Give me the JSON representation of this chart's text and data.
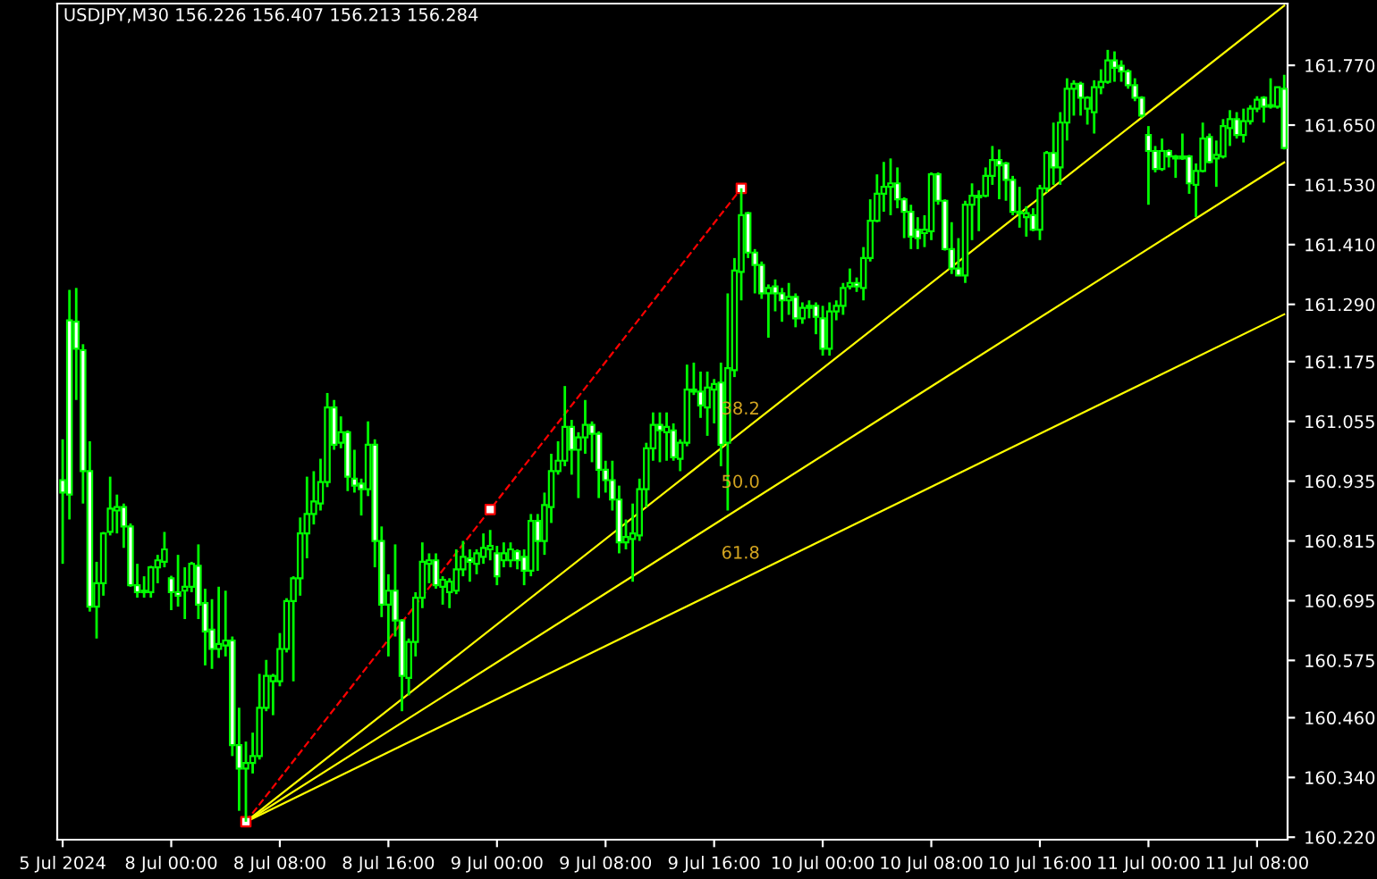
{
  "chart_data": {
    "type": "candlestick",
    "title": "USDJPY,M30 156.226 156.407 156.213 156.284",
    "color": "#00ff00",
    "categories": [
      "5 Jul 2024",
      null,
      null,
      null,
      null,
      null,
      null,
      null,
      null,
      null,
      null,
      null,
      null,
      null,
      null,
      null,
      "8 Jul 00:00",
      null,
      null,
      null,
      null,
      null,
      null,
      null,
      null,
      null,
      null,
      null,
      null,
      null,
      null,
      null,
      "8 Jul 08:00",
      null,
      null,
      null,
      null,
      null,
      null,
      null,
      null,
      null,
      null,
      null,
      null,
      null,
      null,
      null,
      "8 Jul 16:00",
      null,
      null,
      null,
      null,
      null,
      null,
      null,
      null,
      null,
      null,
      null,
      null,
      null,
      null,
      null,
      "9 Jul 00:00",
      null,
      null,
      null,
      null,
      null,
      null,
      null,
      null,
      null,
      null,
      null,
      null,
      null,
      null,
      null,
      "9 Jul 08:00",
      null,
      null,
      null,
      null,
      null,
      null,
      null,
      null,
      null,
      null,
      null,
      null,
      null,
      null,
      null,
      "9 Jul 16:00",
      null,
      null,
      null,
      null,
      null,
      null,
      null,
      null,
      null,
      null,
      null,
      null,
      null,
      null,
      null,
      "10 Jul 00:00",
      null,
      null,
      null,
      null,
      null,
      null,
      null,
      null,
      null,
      null,
      null,
      null,
      null,
      null,
      null,
      "10 Jul 08:00",
      null,
      null,
      null,
      null,
      null,
      null,
      null,
      null,
      null,
      null,
      null,
      null,
      null,
      null,
      null,
      "10 Jul 16:00",
      null,
      null,
      null,
      null,
      null,
      null,
      null,
      null,
      null,
      null,
      null,
      null,
      null,
      null,
      null,
      "11 Jul 00:00",
      null,
      null,
      null,
      null,
      null,
      null,
      null,
      null,
      null,
      null,
      null,
      null,
      null,
      null,
      null,
      "11 Jul 08:00",
      null,
      null,
      null,
      null
    ],
    "ohlc": [
      [
        160.937,
        161.019,
        160.769,
        160.912
      ],
      [
        161.258,
        161.319,
        160.858,
        160.908
      ],
      [
        161.255,
        161.323,
        161.098,
        161.201
      ],
      [
        161.198,
        161.21,
        160.89,
        160.955
      ],
      [
        160.955,
        161.015,
        160.673,
        160.683
      ],
      [
        160.683,
        160.773,
        160.619,
        160.73
      ],
      [
        160.73,
        160.833,
        160.705,
        160.83
      ],
      [
        160.833,
        160.944,
        160.826,
        160.88
      ],
      [
        160.876,
        160.908,
        160.83,
        160.883
      ],
      [
        160.883,
        160.89,
        160.801,
        160.844
      ],
      [
        160.844,
        160.85,
        160.723,
        160.726
      ],
      [
        160.726,
        160.769,
        160.701,
        160.712
      ],
      [
        160.715,
        160.744,
        160.701,
        160.712
      ],
      [
        160.712,
        160.765,
        160.701,
        160.762
      ],
      [
        160.762,
        160.787,
        160.73,
        160.776
      ],
      [
        160.773,
        160.833,
        160.762,
        160.798
      ],
      [
        160.74,
        160.745,
        160.676,
        160.712
      ],
      [
        160.712,
        160.787,
        160.683,
        160.705
      ],
      [
        160.715,
        160.762,
        160.658,
        160.723
      ],
      [
        160.723,
        160.773,
        160.712,
        160.769
      ],
      [
        160.765,
        160.808,
        160.658,
        160.687
      ],
      [
        160.69,
        160.719,
        160.565,
        160.633
      ],
      [
        160.637,
        160.698,
        160.558,
        160.598
      ],
      [
        160.598,
        160.723,
        160.58,
        160.608
      ],
      [
        160.605,
        160.715,
        160.583,
        160.615
      ],
      [
        160.615,
        160.623,
        160.383,
        160.405
      ],
      [
        160.405,
        160.48,
        160.273,
        160.358
      ],
      [
        160.358,
        160.412,
        160.251,
        160.369
      ],
      [
        160.369,
        160.43,
        160.348,
        160.383
      ],
      [
        160.383,
        160.548,
        160.376,
        160.48
      ],
      [
        160.48,
        160.576,
        160.473,
        160.544
      ],
      [
        160.533,
        160.548,
        160.465,
        160.544
      ],
      [
        160.533,
        160.63,
        160.523,
        160.598
      ],
      [
        160.598,
        160.7,
        160.591,
        160.694
      ],
      [
        160.694,
        160.744,
        160.533,
        160.74
      ],
      [
        160.74,
        160.862,
        160.705,
        160.83
      ],
      [
        160.83,
        160.944,
        160.78,
        160.869
      ],
      [
        160.869,
        160.955,
        160.848,
        160.894
      ],
      [
        160.89,
        160.98,
        160.876,
        160.933
      ],
      [
        160.933,
        161.112,
        160.923,
        161.083
      ],
      [
        161.083,
        161.098,
        160.998,
        161.008
      ],
      [
        161.012,
        161.065,
        161.001,
        161.033
      ],
      [
        161.033,
        161.037,
        160.915,
        160.944
      ],
      [
        160.94,
        160.998,
        160.912,
        160.926
      ],
      [
        160.93,
        160.94,
        160.866,
        160.919
      ],
      [
        160.919,
        161.055,
        160.905,
        161.008
      ],
      [
        161.008,
        161.019,
        160.762,
        160.815
      ],
      [
        160.815,
        160.844,
        160.662,
        160.687
      ],
      [
        160.687,
        160.748,
        160.583,
        160.715
      ],
      [
        160.715,
        160.808,
        160.623,
        160.655
      ],
      [
        160.655,
        160.658,
        160.473,
        160.544
      ],
      [
        160.54,
        160.619,
        160.505,
        160.612
      ],
      [
        160.612,
        160.712,
        160.583,
        160.701
      ],
      [
        160.701,
        160.812,
        160.68,
        160.773
      ],
      [
        160.769,
        160.79,
        160.73,
        160.776
      ],
      [
        160.776,
        160.79,
        160.719,
        160.726
      ],
      [
        160.723,
        160.744,
        160.687,
        160.737
      ],
      [
        160.712,
        160.74,
        160.68,
        160.733
      ],
      [
        160.715,
        160.798,
        160.708,
        160.758
      ],
      [
        160.758,
        160.815,
        160.744,
        160.783
      ],
      [
        160.78,
        160.798,
        160.733,
        160.773
      ],
      [
        160.769,
        160.798,
        160.748,
        160.79
      ],
      [
        160.783,
        160.83,
        160.769,
        160.801
      ],
      [
        160.798,
        160.837,
        160.776,
        160.805
      ],
      [
        160.79,
        160.805,
        160.726,
        160.744
      ],
      [
        160.776,
        160.812,
        160.762,
        160.79
      ],
      [
        160.776,
        160.812,
        160.762,
        160.798
      ],
      [
        160.794,
        160.798,
        160.758,
        160.776
      ],
      [
        160.783,
        160.798,
        160.726,
        160.755
      ],
      [
        160.755,
        160.869,
        160.744,
        160.855
      ],
      [
        160.855,
        160.869,
        160.755,
        160.815
      ],
      [
        160.815,
        160.912,
        160.787,
        160.887
      ],
      [
        160.883,
        160.99,
        160.851,
        160.955
      ],
      [
        160.955,
        161.015,
        160.948,
        160.976
      ],
      [
        160.976,
        161.126,
        160.965,
        161.044
      ],
      [
        161.044,
        161.058,
        160.948,
        160.998
      ],
      [
        160.998,
        161.033,
        160.901,
        161.023
      ],
      [
        161.023,
        161.098,
        160.99,
        161.048
      ],
      [
        161.048,
        161.055,
        160.973,
        161.03
      ],
      [
        161.03,
        161.035,
        160.901,
        160.958
      ],
      [
        160.958,
        160.976,
        160.912,
        160.937
      ],
      [
        160.937,
        160.976,
        160.876,
        160.898
      ],
      [
        160.898,
        160.926,
        160.79,
        160.812
      ],
      [
        160.812,
        160.858,
        160.798,
        160.823
      ],
      [
        160.819,
        160.89,
        160.733,
        160.83
      ],
      [
        160.826,
        160.94,
        160.815,
        160.919
      ],
      [
        160.919,
        161.012,
        160.883,
        161.001
      ],
      [
        161.001,
        161.073,
        160.976,
        161.048
      ],
      [
        161.048,
        161.073,
        160.973,
        161.037
      ],
      [
        161.033,
        161.073,
        160.976,
        161.044
      ],
      [
        161.037,
        161.051,
        160.976,
        160.983
      ],
      [
        160.98,
        161.019,
        160.955,
        161.012
      ],
      [
        161.012,
        161.169,
        161.005,
        161.119
      ],
      [
        161.119,
        161.173,
        161.108,
        161.115
      ],
      [
        161.115,
        161.155,
        161.062,
        161.087
      ],
      [
        161.083,
        161.155,
        161.026,
        161.123
      ],
      [
        161.119,
        161.14,
        161.051,
        161.13
      ],
      [
        161.133,
        161.173,
        160.965,
        161.008
      ],
      [
        161.012,
        161.312,
        160.876,
        161.162
      ],
      [
        161.158,
        161.383,
        161.144,
        161.358
      ],
      [
        161.355,
        161.523,
        161.298,
        161.469
      ],
      [
        161.473,
        161.476,
        161.383,
        161.394
      ],
      [
        161.394,
        161.401,
        161.312,
        161.369
      ],
      [
        161.369,
        161.376,
        161.301,
        161.312
      ],
      [
        161.312,
        161.33,
        161.223,
        161.323
      ],
      [
        161.326,
        161.34,
        161.276,
        161.312
      ],
      [
        161.312,
        161.323,
        161.255,
        161.298
      ],
      [
        161.298,
        161.333,
        161.269,
        161.305
      ],
      [
        161.305,
        161.312,
        161.244,
        161.262
      ],
      [
        161.262,
        161.294,
        161.251,
        161.283
      ],
      [
        161.283,
        161.298,
        161.262,
        161.287
      ],
      [
        161.287,
        161.294,
        161.23,
        161.265
      ],
      [
        161.262,
        161.287,
        161.187,
        161.201
      ],
      [
        161.201,
        161.294,
        161.187,
        161.276
      ],
      [
        161.276,
        161.298,
        161.258,
        161.287
      ],
      [
        161.287,
        161.333,
        161.269,
        161.323
      ],
      [
        161.326,
        161.362,
        161.32,
        161.333
      ],
      [
        161.333,
        161.344,
        161.315,
        161.326
      ],
      [
        161.323,
        161.405,
        161.298,
        161.383
      ],
      [
        161.383,
        161.501,
        161.376,
        161.458
      ],
      [
        161.458,
        161.551,
        161.455,
        161.512
      ],
      [
        161.512,
        161.576,
        161.476,
        161.526
      ],
      [
        161.526,
        161.583,
        161.469,
        161.533
      ],
      [
        161.533,
        161.565,
        161.483,
        161.501
      ],
      [
        161.501,
        161.505,
        161.423,
        161.476
      ],
      [
        161.476,
        161.49,
        161.401,
        161.426
      ],
      [
        161.44,
        161.465,
        161.401,
        161.423
      ],
      [
        161.433,
        161.469,
        161.405,
        161.44
      ],
      [
        161.437,
        161.555,
        161.419,
        161.551
      ],
      [
        161.551,
        161.555,
        161.49,
        161.498
      ],
      [
        161.498,
        161.501,
        161.398,
        161.401
      ],
      [
        161.401,
        161.455,
        161.351,
        161.362
      ],
      [
        161.362,
        161.423,
        161.348,
        161.348
      ],
      [
        161.348,
        161.498,
        161.333,
        161.49
      ],
      [
        161.49,
        161.533,
        161.419,
        161.508
      ],
      [
        161.508,
        161.519,
        161.437,
        161.505
      ],
      [
        161.508,
        161.565,
        161.505,
        161.548
      ],
      [
        161.548,
        161.608,
        161.53,
        161.58
      ],
      [
        161.58,
        161.601,
        161.501,
        161.569
      ],
      [
        161.573,
        161.576,
        161.498,
        161.54
      ],
      [
        161.54,
        161.548,
        161.469,
        161.476
      ],
      [
        161.476,
        161.526,
        161.444,
        161.473
      ],
      [
        161.465,
        161.487,
        161.426,
        161.473
      ],
      [
        161.469,
        161.483,
        161.437,
        161.44
      ],
      [
        161.44,
        161.53,
        161.419,
        161.523
      ],
      [
        161.523,
        161.598,
        161.515,
        161.594
      ],
      [
        161.594,
        161.655,
        161.53,
        161.565
      ],
      [
        161.565,
        161.676,
        161.53,
        161.655
      ],
      [
        161.655,
        161.744,
        161.619,
        161.723
      ],
      [
        161.723,
        161.74,
        161.669,
        161.733
      ],
      [
        161.733,
        161.737,
        161.669,
        161.705
      ],
      [
        161.683,
        161.708,
        161.651,
        161.705
      ],
      [
        161.676,
        161.74,
        161.633,
        161.726
      ],
      [
        161.726,
        161.762,
        161.712,
        161.737
      ],
      [
        161.737,
        161.801,
        161.733,
        161.78
      ],
      [
        161.78,
        161.798,
        161.737,
        161.765
      ],
      [
        161.769,
        161.78,
        161.737,
        161.758
      ],
      [
        161.758,
        161.762,
        161.723,
        161.73
      ],
      [
        161.73,
        161.744,
        161.698,
        161.705
      ],
      [
        161.705,
        161.708,
        161.665,
        161.669
      ],
      [
        161.63,
        161.648,
        161.49,
        161.598
      ],
      [
        161.598,
        161.608,
        161.555,
        161.562
      ],
      [
        161.562,
        161.623,
        161.558,
        161.598
      ],
      [
        161.598,
        161.601,
        161.565,
        161.587
      ],
      [
        161.587,
        161.59,
        161.544,
        161.583
      ],
      [
        161.583,
        161.633,
        161.58,
        161.587
      ],
      [
        161.587,
        161.59,
        161.512,
        161.533
      ],
      [
        161.53,
        161.573,
        161.465,
        161.558
      ],
      [
        161.558,
        161.655,
        161.555,
        161.623
      ],
      [
        161.626,
        161.633,
        161.573,
        161.576
      ],
      [
        161.583,
        161.619,
        161.526,
        161.59
      ],
      [
        161.587,
        161.662,
        161.583,
        161.648
      ],
      [
        161.644,
        161.68,
        161.608,
        161.662
      ],
      [
        161.662,
        161.676,
        161.623,
        161.63
      ],
      [
        161.63,
        161.683,
        161.615,
        161.658
      ],
      [
        161.658,
        161.69,
        161.651,
        161.683
      ],
      [
        161.683,
        161.708,
        161.676,
        161.701
      ],
      [
        161.705,
        161.708,
        161.655,
        161.687
      ],
      [
        161.687,
        161.744,
        161.683,
        161.69
      ],
      [
        161.687,
        161.726,
        161.683,
        161.726
      ],
      [
        161.723,
        161.751,
        161.601,
        161.604
      ]
    ],
    "series": [
      {
        "type": "line",
        "color": "#ff0000",
        "line_style": "dashed",
        "marker": "square",
        "values": [
          null,
          null,
          null,
          null,
          null,
          null,
          null,
          null,
          null,
          null,
          null,
          null,
          null,
          null,
          null,
          null,
          null,
          null,
          null,
          null,
          null,
          null,
          null,
          null,
          null,
          null,
          null,
          160.251,
          null,
          null,
          null,
          null,
          null,
          null,
          null,
          null,
          null,
          null,
          null,
          null,
          null,
          null,
          null,
          null,
          null,
          null,
          null,
          null,
          null,
          null,
          null,
          null,
          null,
          null,
          null,
          null,
          null,
          null,
          null,
          null,
          null,
          null,
          null,
          160.878,
          null,
          null,
          null,
          null,
          null,
          null,
          null,
          null,
          null,
          null,
          null,
          null,
          null,
          null,
          null,
          null,
          null,
          null,
          null,
          null,
          null,
          null,
          null,
          null,
          null,
          null,
          null,
          null,
          null,
          null,
          null,
          null,
          null,
          null,
          null,
          null,
          161.523,
          null,
          null,
          null,
          null,
          null,
          null,
          null,
          null,
          null,
          null,
          null,
          null,
          null,
          null,
          null,
          null,
          null,
          null,
          null,
          null,
          null,
          null,
          null,
          null,
          null,
          null,
          null,
          null,
          null,
          null,
          null,
          null,
          null,
          null,
          null,
          null,
          null,
          null,
          null,
          null,
          null,
          null,
          null,
          null,
          null,
          null,
          null,
          null,
          null,
          null,
          null,
          null,
          null,
          null,
          null,
          null,
          null,
          null,
          null,
          null,
          null,
          null,
          null,
          null,
          null,
          null,
          null,
          null,
          null,
          null,
          null,
          null,
          null,
          null,
          null,
          null,
          null,
          null,
          null,
          null
        ]
      },
      {
        "type": "line",
        "color": "#ffff00",
        "line_style": "solid",
        "marker": "none",
        "values": [
          null,
          null,
          null,
          null,
          null,
          null,
          null,
          null,
          null,
          null,
          null,
          null,
          null,
          null,
          null,
          null,
          null,
          null,
          null,
          null,
          null,
          null,
          null,
          null,
          null,
          null,
          null,
          160.251,
          null,
          null,
          null,
          null,
          null,
          null,
          null,
          null,
          null,
          null,
          null,
          null,
          null,
          null,
          null,
          null,
          null,
          null,
          null,
          null,
          null,
          null,
          null,
          null,
          null,
          null,
          null,
          null,
          null,
          null,
          null,
          null,
          null,
          null,
          null,
          null,
          null,
          null,
          null,
          null,
          null,
          null,
          null,
          null,
          null,
          null,
          null,
          null,
          null,
          null,
          null,
          null,
          null,
          null,
          null,
          null,
          null,
          null,
          null,
          null,
          null,
          null,
          null,
          null,
          null,
          null,
          null,
          null,
          null,
          null,
          null,
          null,
          null,
          null,
          null,
          null,
          null,
          null,
          null,
          null,
          null,
          null,
          null,
          null,
          null,
          null,
          null,
          null,
          null,
          null,
          null,
          null,
          null,
          null,
          null,
          null,
          null,
          null,
          null,
          null,
          null,
          null,
          null,
          null,
          null,
          null,
          null,
          null,
          null,
          null,
          null,
          null,
          null,
          null,
          null,
          null,
          null,
          null,
          null,
          null,
          null,
          null,
          null,
          null,
          null,
          null,
          null,
          null,
          null,
          null,
          null,
          null,
          null,
          null,
          null,
          null,
          null,
          null,
          null,
          null,
          null,
          null,
          null,
          null,
          null,
          null,
          null,
          null,
          null,
          null,
          null,
          null,
          161.89
        ]
      },
      {
        "type": "line",
        "color": "#ffff00",
        "line_style": "solid",
        "marker": "none",
        "values": [
          null,
          null,
          null,
          null,
          null,
          null,
          null,
          null,
          null,
          null,
          null,
          null,
          null,
          null,
          null,
          null,
          null,
          null,
          null,
          null,
          null,
          null,
          null,
          null,
          null,
          null,
          null,
          160.251,
          null,
          null,
          null,
          null,
          null,
          null,
          null,
          null,
          null,
          null,
          null,
          null,
          null,
          null,
          null,
          null,
          null,
          null,
          null,
          null,
          null,
          null,
          null,
          null,
          null,
          null,
          null,
          null,
          null,
          null,
          null,
          null,
          null,
          null,
          null,
          null,
          null,
          null,
          null,
          null,
          null,
          null,
          null,
          null,
          null,
          null,
          null,
          null,
          null,
          null,
          null,
          null,
          null,
          null,
          null,
          null,
          null,
          null,
          null,
          null,
          null,
          null,
          null,
          null,
          null,
          null,
          null,
          null,
          null,
          null,
          null,
          null,
          null,
          null,
          null,
          null,
          null,
          null,
          null,
          null,
          null,
          null,
          null,
          null,
          null,
          null,
          null,
          null,
          null,
          null,
          null,
          null,
          null,
          null,
          null,
          null,
          null,
          null,
          null,
          null,
          null,
          null,
          null,
          null,
          null,
          null,
          null,
          null,
          null,
          null,
          null,
          null,
          null,
          null,
          null,
          null,
          null,
          null,
          null,
          null,
          null,
          null,
          null,
          null,
          null,
          null,
          null,
          null,
          null,
          null,
          null,
          null,
          null,
          null,
          null,
          null,
          null,
          null,
          null,
          null,
          null,
          null,
          null,
          null,
          null,
          null,
          null,
          null,
          null,
          null,
          null,
          null,
          161.575
        ]
      },
      {
        "type": "line",
        "color": "#ffff00",
        "line_style": "solid",
        "marker": "none",
        "values": [
          null,
          null,
          null,
          null,
          null,
          null,
          null,
          null,
          null,
          null,
          null,
          null,
          null,
          null,
          null,
          null,
          null,
          null,
          null,
          null,
          null,
          null,
          null,
          null,
          null,
          null,
          null,
          160.251,
          null,
          null,
          null,
          null,
          null,
          null,
          null,
          null,
          null,
          null,
          null,
          null,
          null,
          null,
          null,
          null,
          null,
          null,
          null,
          null,
          null,
          null,
          null,
          null,
          null,
          null,
          null,
          null,
          null,
          null,
          null,
          null,
          null,
          null,
          null,
          null,
          null,
          null,
          null,
          null,
          null,
          null,
          null,
          null,
          null,
          null,
          null,
          null,
          null,
          null,
          null,
          null,
          null,
          null,
          null,
          null,
          null,
          null,
          null,
          null,
          null,
          null,
          null,
          null,
          null,
          null,
          null,
          null,
          null,
          null,
          null,
          null,
          null,
          null,
          null,
          null,
          null,
          null,
          null,
          null,
          null,
          null,
          null,
          null,
          null,
          null,
          null,
          null,
          null,
          null,
          null,
          null,
          null,
          null,
          null,
          null,
          null,
          null,
          null,
          null,
          null,
          null,
          null,
          null,
          null,
          null,
          null,
          null,
          null,
          null,
          null,
          null,
          null,
          null,
          null,
          null,
          null,
          null,
          null,
          null,
          null,
          null,
          null,
          null,
          null,
          null,
          null,
          null,
          null,
          null,
          null,
          null,
          null,
          null,
          null,
          null,
          null,
          null,
          null,
          null,
          null,
          null,
          null,
          null,
          null,
          null,
          null,
          null,
          null,
          null,
          null,
          null,
          161.27
        ]
      }
    ],
    "annotations": [
      "38.2",
      "50.0",
      "61.8"
    ],
    "ylim": [
      160.215,
      161.894
    ],
    "yticks": [
      {
        "value": 161.77,
        "label": "161.770"
      },
      {
        "value": 161.65,
        "label": "161.650"
      },
      {
        "value": 161.53,
        "label": "161.530"
      },
      {
        "value": 161.41,
        "label": "161.410"
      },
      {
        "value": 161.29,
        "label": "161.290"
      },
      {
        "value": 161.175,
        "label": "161.175"
      },
      {
        "value": 161.055,
        "label": "161.055"
      },
      {
        "value": 160.935,
        "label": "160.935"
      },
      {
        "value": 160.815,
        "label": "160.815"
      },
      {
        "value": 160.695,
        "label": "160.695"
      },
      {
        "value": 160.575,
        "label": "160.575"
      },
      {
        "value": 160.46,
        "label": "160.460"
      },
      {
        "value": 160.34,
        "label": "160.340"
      },
      {
        "value": 160.22,
        "label": "160.220"
      }
    ]
  }
}
